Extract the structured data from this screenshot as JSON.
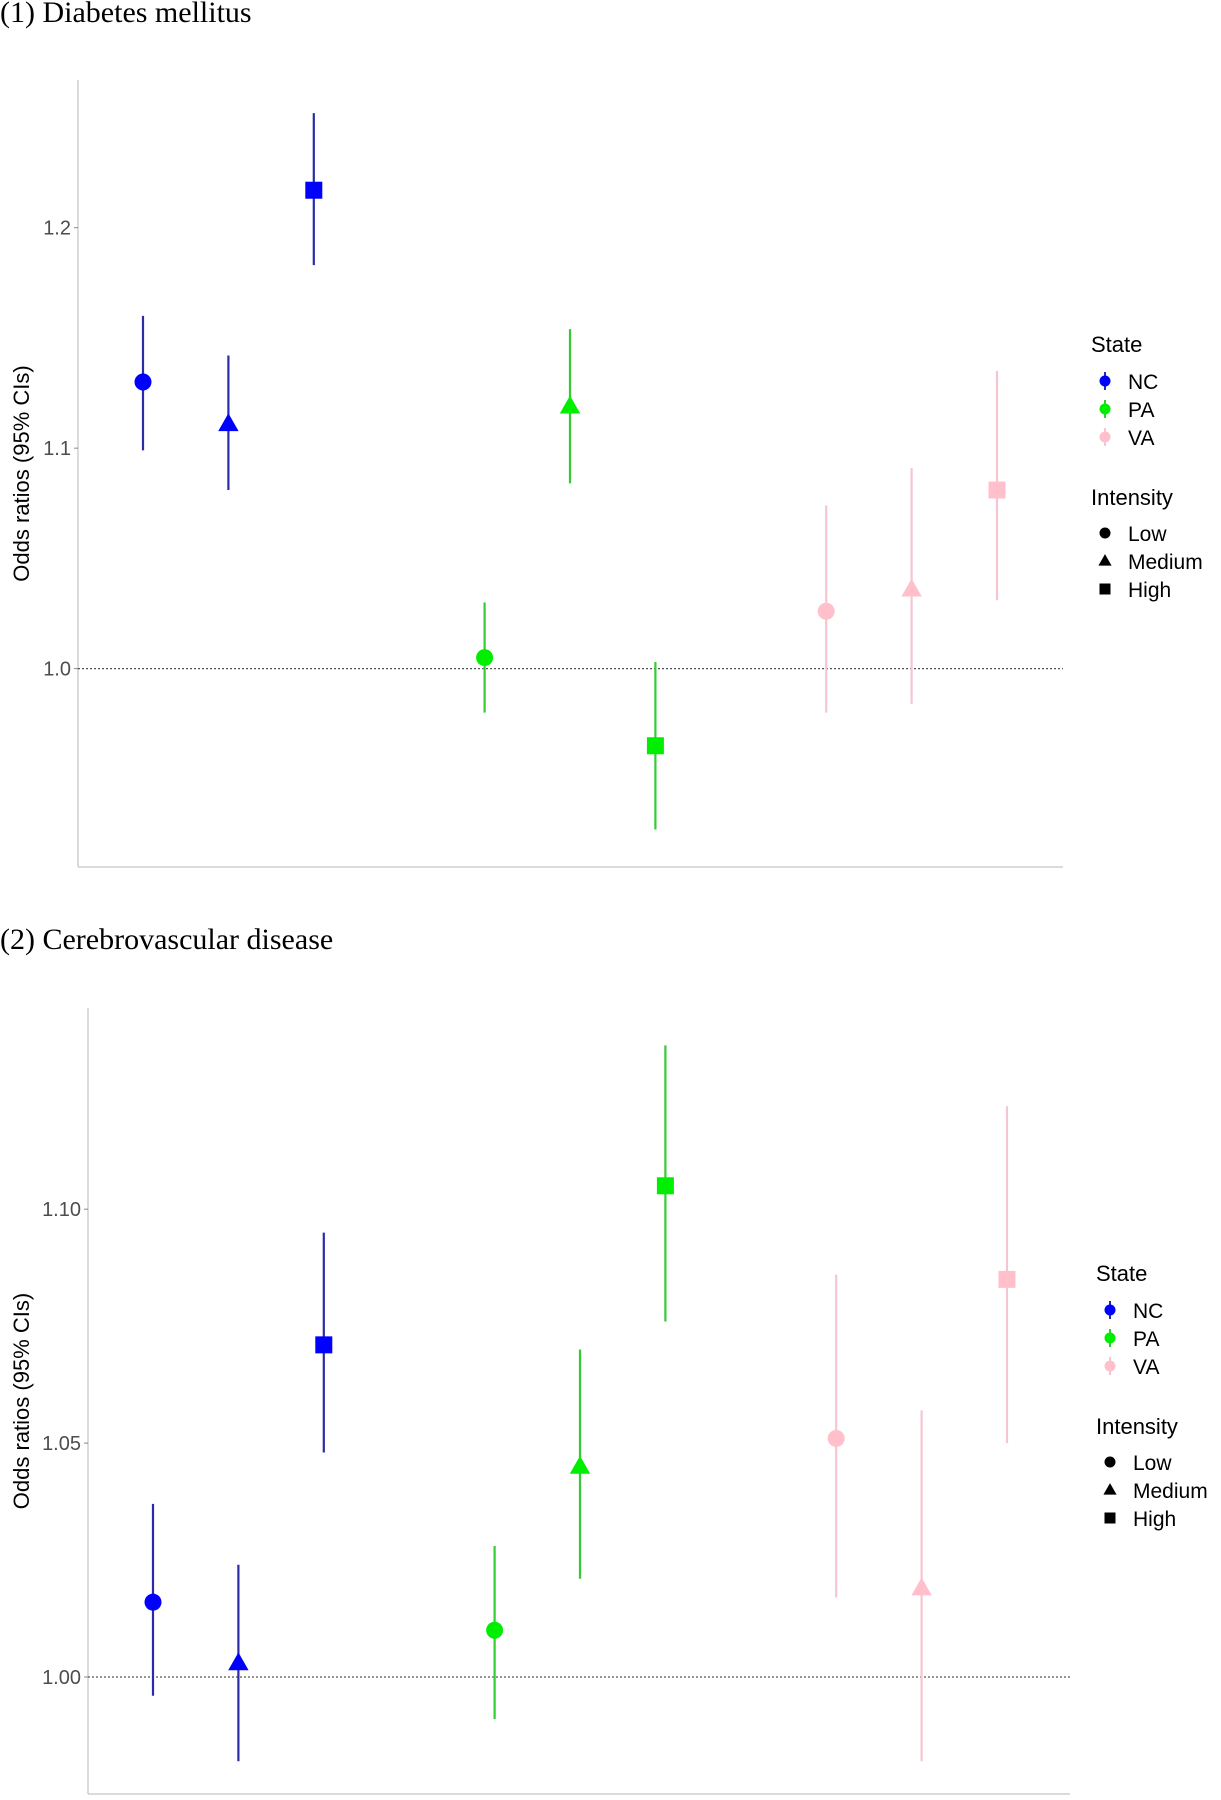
{
  "colors": {
    "NC": "#0000ff",
    "PA": "#00ee00",
    "VA": "#ffc0cb",
    "NC_line": "#2b2ba8",
    "PA_line": "#33cc33",
    "VA_line": "#f5c6cf"
  },
  "chart_data": [
    {
      "type": "scatter",
      "title": "(1) Diabetes mellitus",
      "xlabel": "",
      "ylabel": "Odds ratios (95% CIs)",
      "ylim": [
        0.91,
        1.267
      ],
      "yticks": [
        1.0,
        1.1,
        1.2
      ],
      "ytick_labels": [
        "1.0",
        "1.1",
        "1.2"
      ],
      "reference_line": 1.0,
      "grid": false,
      "legend_position": "right",
      "legend": {
        "state_title": "State",
        "states": [
          "NC",
          "PA",
          "VA"
        ],
        "intensity_title": "Intensity",
        "intensities": [
          "Low",
          "Medium",
          "High"
        ]
      },
      "points": [
        {
          "state": "NC",
          "intensity": "Low",
          "or": 1.13,
          "lo": 1.099,
          "hi": 1.16
        },
        {
          "state": "NC",
          "intensity": "Medium",
          "or": 1.111,
          "lo": 1.081,
          "hi": 1.142
        },
        {
          "state": "NC",
          "intensity": "High",
          "or": 1.217,
          "lo": 1.183,
          "hi": 1.252
        },
        {
          "state": "PA",
          "intensity": "Low",
          "or": 1.005,
          "lo": 0.98,
          "hi": 1.03
        },
        {
          "state": "PA",
          "intensity": "Medium",
          "or": 1.119,
          "lo": 1.084,
          "hi": 1.154
        },
        {
          "state": "PA",
          "intensity": "High",
          "or": 0.965,
          "lo": 0.927,
          "hi": 1.003
        },
        {
          "state": "VA",
          "intensity": "Low",
          "or": 1.026,
          "lo": 0.98,
          "hi": 1.074
        },
        {
          "state": "VA",
          "intensity": "Medium",
          "or": 1.036,
          "lo": 0.984,
          "hi": 1.091
        },
        {
          "state": "VA",
          "intensity": "High",
          "or": 1.081,
          "lo": 1.031,
          "hi": 1.135
        }
      ]
    },
    {
      "type": "scatter",
      "title": "(2) Cerebrovascular disease",
      "xlabel": "",
      "ylabel": "Odds ratios (95% CIs)",
      "ylim": [
        0.975,
        1.143
      ],
      "yticks": [
        1.0,
        1.05,
        1.1
      ],
      "ytick_labels": [
        "1.00",
        "1.05",
        "1.10"
      ],
      "reference_line": 1.0,
      "grid": false,
      "legend_position": "right",
      "legend": {
        "state_title": "State",
        "states": [
          "NC",
          "PA",
          "VA"
        ],
        "intensity_title": "Intensity",
        "intensities": [
          "Low",
          "Medium",
          "High"
        ]
      },
      "points": [
        {
          "state": "NC",
          "intensity": "Low",
          "or": 1.016,
          "lo": 0.996,
          "hi": 1.037
        },
        {
          "state": "NC",
          "intensity": "Medium",
          "or": 1.003,
          "lo": 0.982,
          "hi": 1.024
        },
        {
          "state": "NC",
          "intensity": "High",
          "or": 1.071,
          "lo": 1.048,
          "hi": 1.095
        },
        {
          "state": "PA",
          "intensity": "Low",
          "or": 1.01,
          "lo": 0.991,
          "hi": 1.028
        },
        {
          "state": "PA",
          "intensity": "Medium",
          "or": 1.045,
          "lo": 1.021,
          "hi": 1.07
        },
        {
          "state": "PA",
          "intensity": "High",
          "or": 1.105,
          "lo": 1.076,
          "hi": 1.135
        },
        {
          "state": "VA",
          "intensity": "Low",
          "or": 1.051,
          "lo": 1.017,
          "hi": 1.086
        },
        {
          "state": "VA",
          "intensity": "Medium",
          "or": 1.019,
          "lo": 0.982,
          "hi": 1.057
        },
        {
          "state": "VA",
          "intensity": "High",
          "or": 1.085,
          "lo": 1.05,
          "hi": 1.122
        }
      ]
    }
  ]
}
